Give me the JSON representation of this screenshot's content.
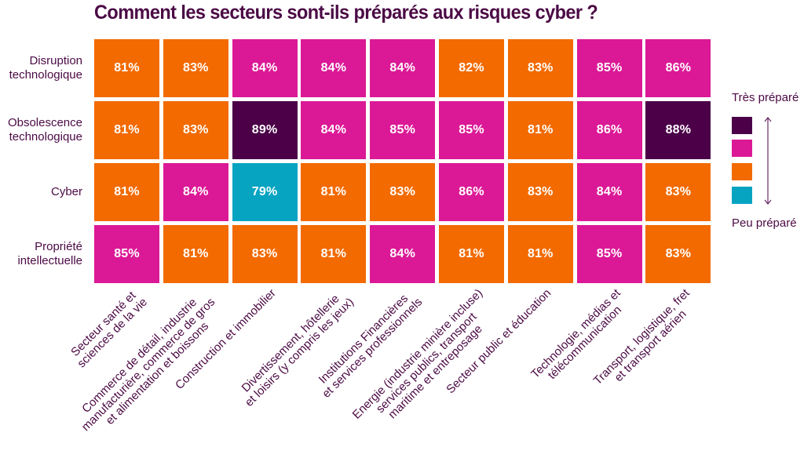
{
  "chart_data": {
    "type": "heatmap",
    "title": "Comment les secteurs sont-ils préparés aux risques cyber ?",
    "rows": [
      "Disruption technologique",
      "Obsolescence technologique",
      "Cyber",
      "Propriété intellectuelle"
    ],
    "row_labels": [
      [
        "Disruption",
        "technologique"
      ],
      [
        "Obsolescence",
        "technologique"
      ],
      [
        "Cyber"
      ],
      [
        "Propriété",
        "intellectuelle"
      ]
    ],
    "columns": [
      [
        "Secteur santé et",
        "sciences de la vie"
      ],
      [
        "Commerce de détail, industrie",
        "manufacturière, commerce de gros",
        "et alimentation et boissons"
      ],
      [
        "Construction et immobilier"
      ],
      [
        "Divertissement, hôtellerie",
        "et loisirs (y compris les jeux)"
      ],
      [
        "Institutions Financières",
        "et services professionnels"
      ],
      [
        "Energie (industrie minière incluse)",
        "services publics, transport",
        "maritime et entreposage"
      ],
      [
        "Secteur public et éducation"
      ],
      [
        "Technologie, médias et",
        "télécommunication"
      ],
      [
        "Transport, logistique, fret",
        "et transport aérien"
      ]
    ],
    "values": [
      [
        81,
        83,
        84,
        84,
        84,
        82,
        83,
        85,
        86
      ],
      [
        81,
        83,
        89,
        84,
        85,
        85,
        81,
        86,
        88
      ],
      [
        81,
        84,
        79,
        81,
        83,
        86,
        83,
        84,
        83
      ],
      [
        85,
        81,
        83,
        81,
        84,
        81,
        81,
        85,
        83
      ]
    ],
    "unit": "%",
    "color_scale": [
      {
        "label": "Très préparé",
        "min": 87,
        "color": "#4b0048"
      },
      {
        "label": "",
        "min": 84,
        "color": "#db1996"
      },
      {
        "label": "",
        "min": 80,
        "color": "#f26a00"
      },
      {
        "label": "Peu préparé",
        "min": 0,
        "color": "#07a4c2"
      }
    ],
    "legend": {
      "top_label": "Très préparé",
      "bottom_label": "Peu préparé",
      "position": "right",
      "arrow": "double-vertical-arrow"
    }
  }
}
